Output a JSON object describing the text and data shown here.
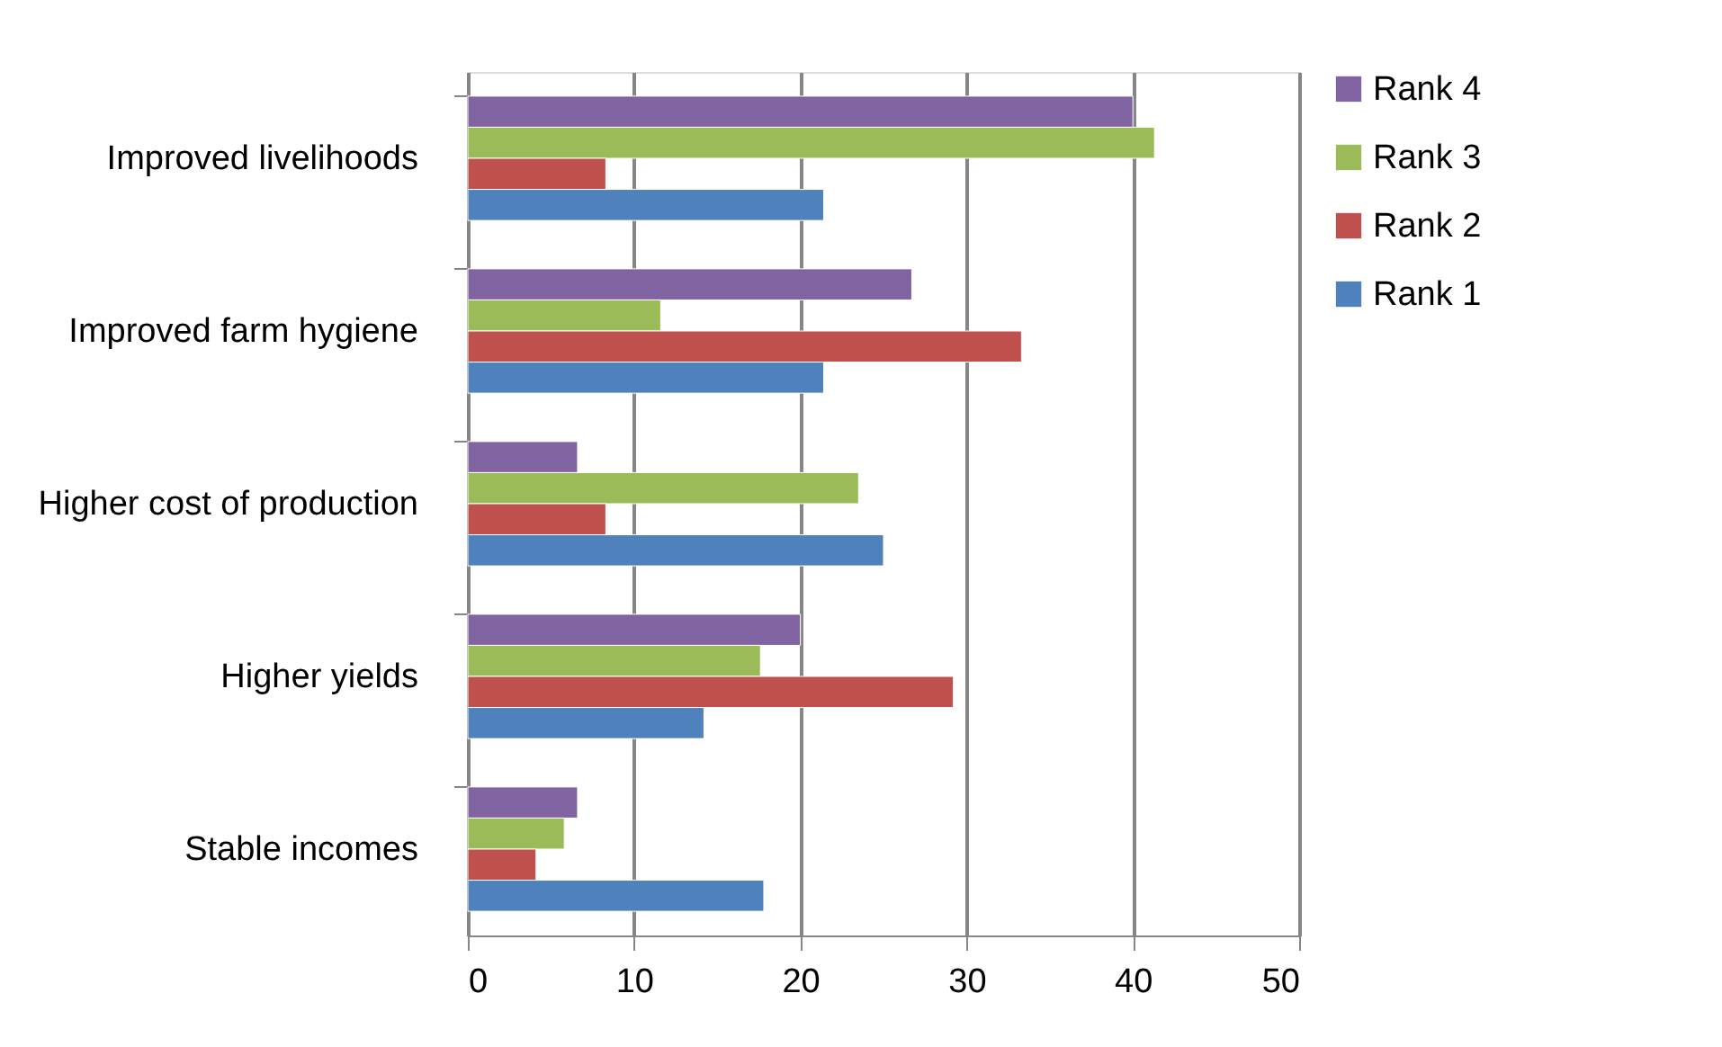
{
  "chart_data": {
    "type": "bar",
    "orientation": "horizontal",
    "categories": [
      "Improved livelihoods",
      "Improved farm hygiene",
      "Higher cost of production",
      "Higher yields",
      "Stable incomes"
    ],
    "series": [
      {
        "name": "Rank 4",
        "color": "#8064a2",
        "values": [
          40.0,
          26.7,
          6.6,
          20.0,
          6.6
        ]
      },
      {
        "name": "Rank 3",
        "color": "#9bbb59",
        "values": [
          41.3,
          11.6,
          23.5,
          17.6,
          5.8
        ]
      },
      {
        "name": "Rank 2",
        "color": "#c0504d",
        "values": [
          8.3,
          33.3,
          8.3,
          29.2,
          4.1
        ]
      },
      {
        "name": "Rank 1",
        "color": "#4f81bd",
        "values": [
          21.4,
          21.4,
          25.0,
          14.2,
          17.8
        ]
      }
    ],
    "xlim": [
      0,
      50
    ],
    "xticks": [
      0,
      10,
      20,
      30,
      40,
      50
    ],
    "grid": "x",
    "legend": "right"
  }
}
